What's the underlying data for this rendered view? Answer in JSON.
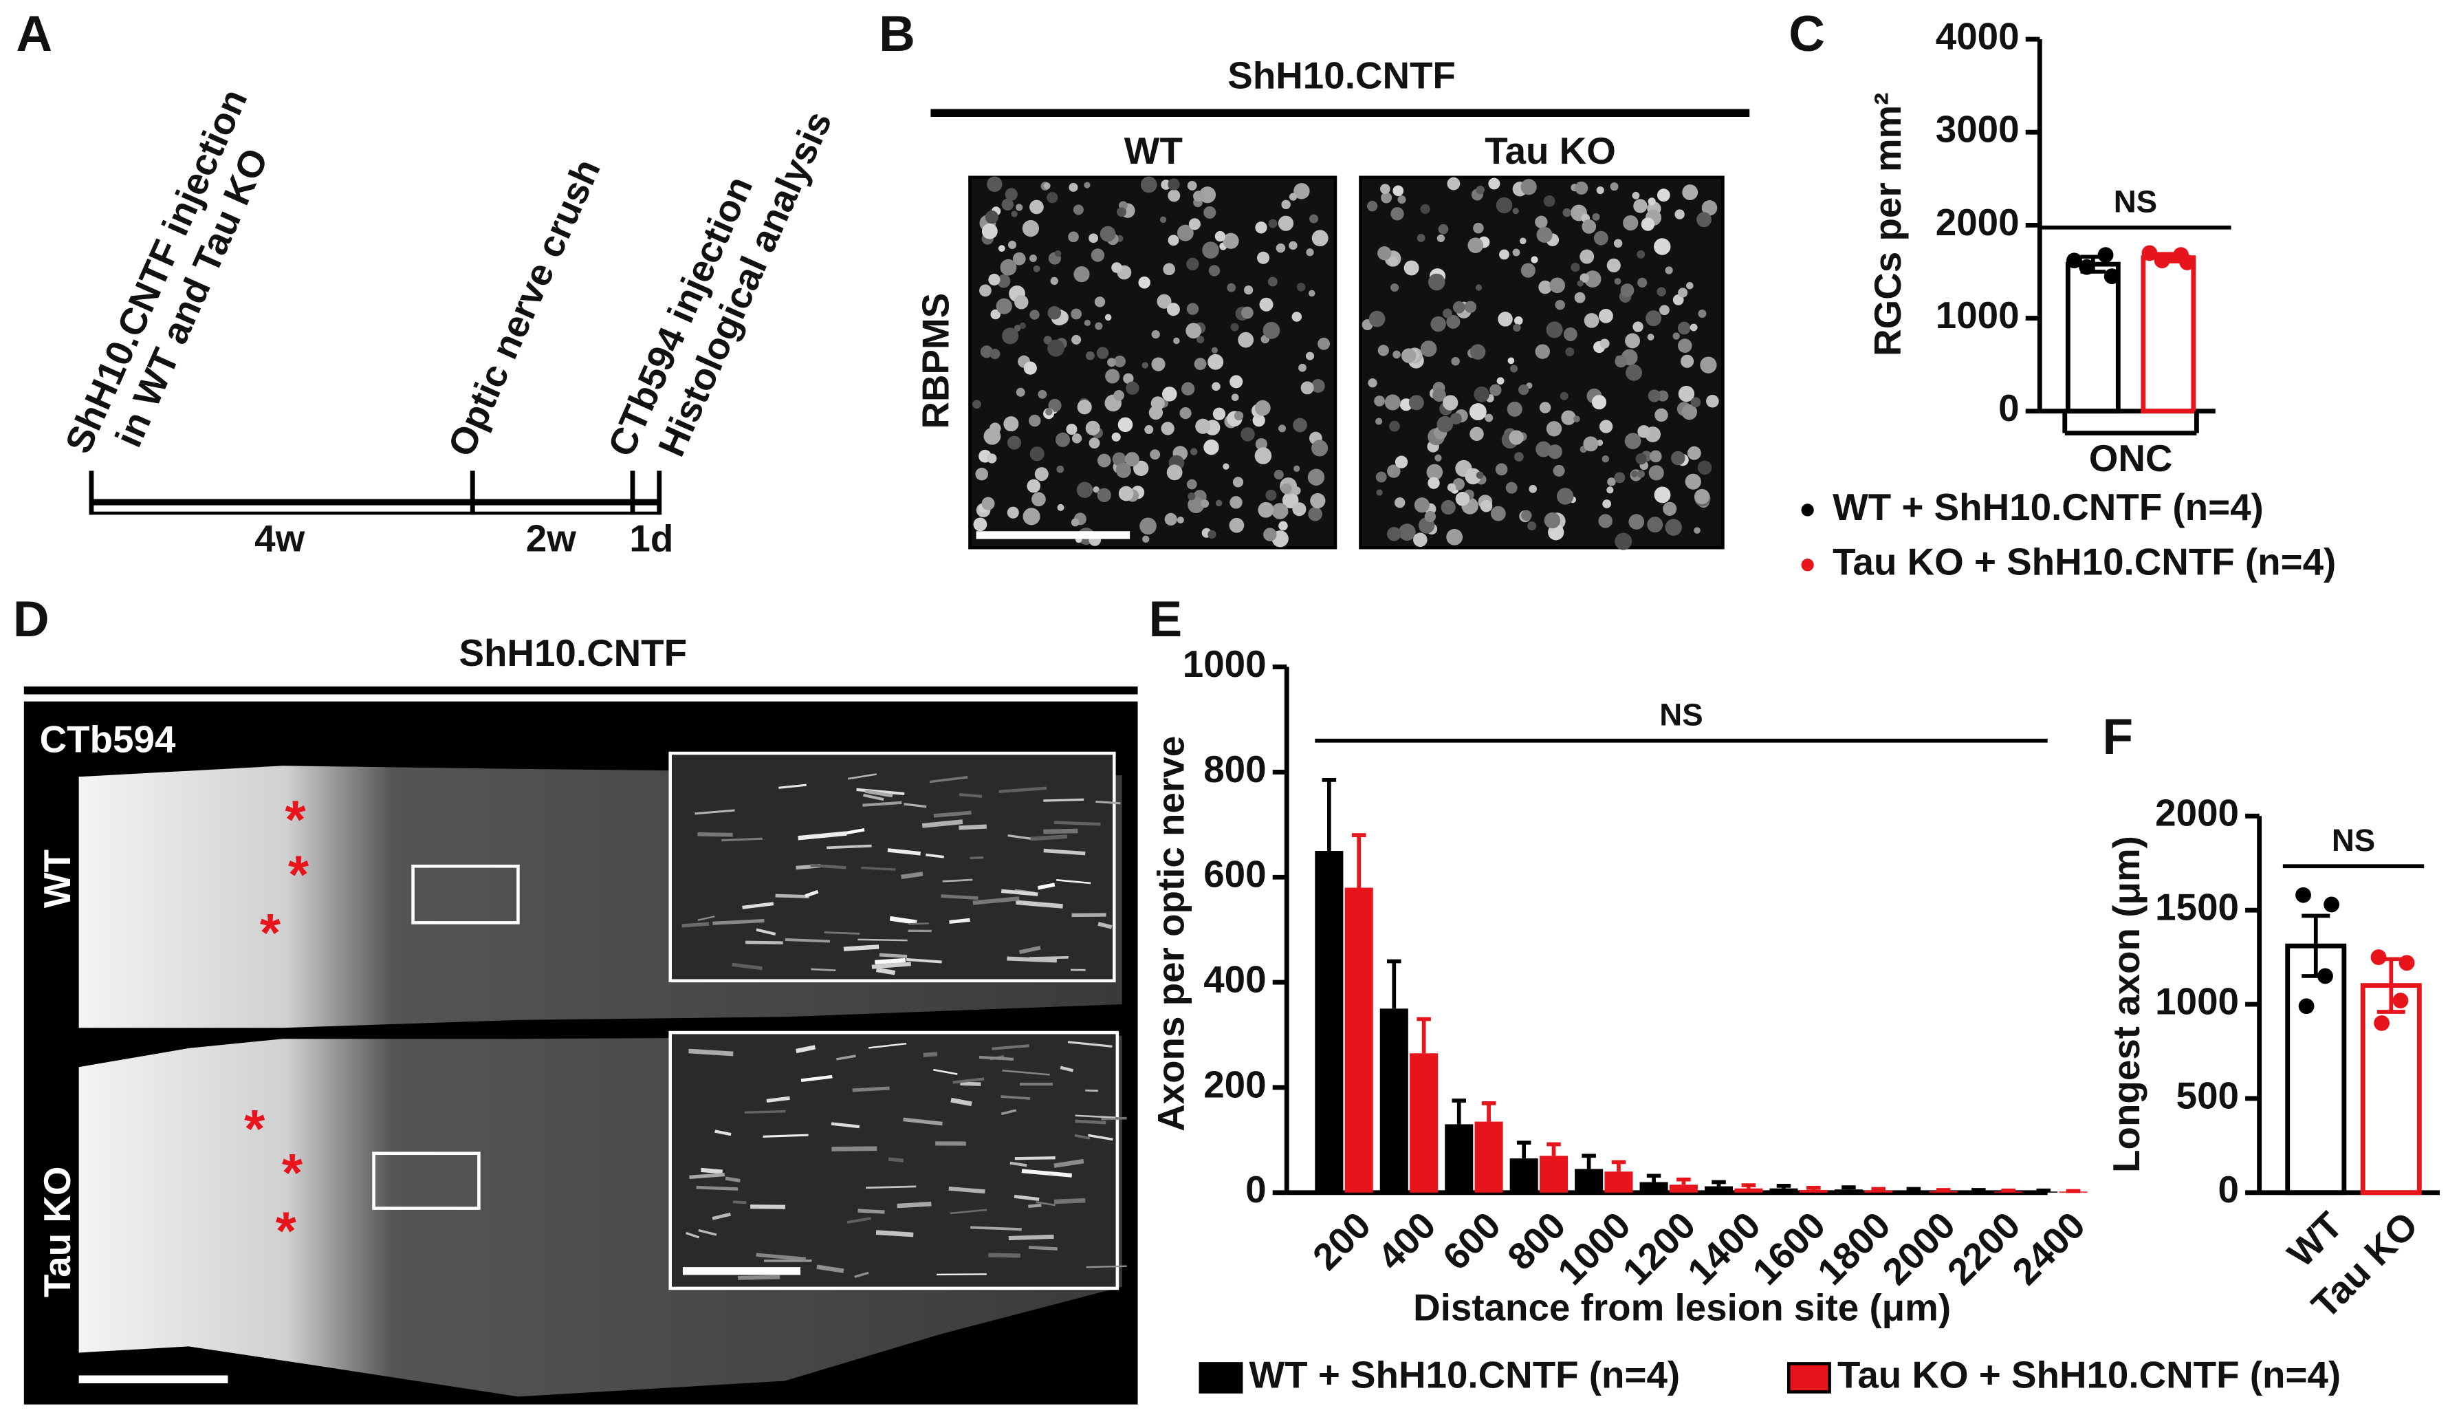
{
  "panel_letters": [
    "A",
    "B",
    "C",
    "D",
    "E",
    "F"
  ],
  "timeline": {
    "events": [
      [
        "ShH10.CNTF injection",
        "in WT and Tau KO"
      ],
      [
        "Optic nerve crush"
      ],
      [
        "CTb594 injection"
      ],
      [
        "Histological analysis"
      ]
    ],
    "intervals": [
      "4w",
      "2w",
      "1d"
    ]
  },
  "panel_b": {
    "treatment": "ShH10.CNTF",
    "groups": [
      "WT",
      "Tau KO"
    ],
    "stain": "RBPMS"
  },
  "panel_d": {
    "treatment": "ShH10.CNTF",
    "stain": "CTb594",
    "groups": [
      "WT",
      "Tau KO"
    ],
    "marker": "*"
  },
  "chart_data": [
    {
      "type": "bar",
      "ylabel": "RGCs per mm²",
      "annotation": "NS",
      "categories": [
        "ONC"
      ],
      "ylim": [
        0,
        4000
      ],
      "yticks": [
        0,
        1000,
        2000,
        3000,
        4000
      ],
      "series": [
        {
          "name": "WT + ShH10.CNTF (n=4)",
          "color": "#000000",
          "values": [
            1580
          ],
          "errors": [
            80
          ],
          "points": [
            [
              1620,
              1680,
              1550,
              1450
            ]
          ]
        },
        {
          "name": "Tau KO + ShH10.CNTF (n=4)",
          "color": "#e8141c",
          "values": [
            1650
          ],
          "errors": [
            40
          ],
          "points": [
            [
              1700,
              1680,
              1620,
              1600
            ]
          ]
        }
      ]
    },
    {
      "type": "bar",
      "ylabel": "Axons per optic nerve",
      "xlabel": "Distance from lesion site (μm)",
      "annotation": "NS",
      "categories": [
        "200",
        "400",
        "600",
        "800",
        "1000",
        "1200",
        "1400",
        "1600",
        "1800",
        "2000",
        "2200",
        "2400"
      ],
      "ylim": [
        0,
        1000
      ],
      "yticks": [
        0,
        200,
        400,
        600,
        800,
        1000
      ],
      "series": [
        {
          "name": "WT + ShH10.CNTF (n=4)",
          "color": "#000000",
          "values": [
            650,
            350,
            130,
            65,
            45,
            20,
            12,
            8,
            6,
            4,
            3,
            2
          ],
          "errors": [
            135,
            90,
            45,
            30,
            25,
            12,
            8,
            5,
            4,
            3,
            2,
            2
          ]
        },
        {
          "name": "Tau KO + ShH10.CNTF (n=4)",
          "color": "#e8141c",
          "values": [
            580,
            265,
            135,
            70,
            40,
            15,
            8,
            5,
            4,
            3,
            2,
            2
          ],
          "errors": [
            100,
            65,
            35,
            22,
            18,
            10,
            6,
            4,
            3,
            2,
            2,
            1
          ]
        }
      ]
    },
    {
      "type": "bar",
      "ylabel": "Longest axon (μm)",
      "annotation": "NS",
      "categories": [
        "WT",
        "Tau KO"
      ],
      "ylim": [
        0,
        2000
      ],
      "yticks": [
        0,
        500,
        1000,
        1500,
        2000
      ],
      "values": [
        1310,
        1100
      ],
      "errors": [
        160,
        140
      ],
      "colors": [
        "#000000",
        "#e8141c"
      ],
      "points": [
        [
          1580,
          1530,
          1150,
          990
        ],
        [
          1250,
          1220,
          1020,
          900
        ]
      ]
    }
  ]
}
